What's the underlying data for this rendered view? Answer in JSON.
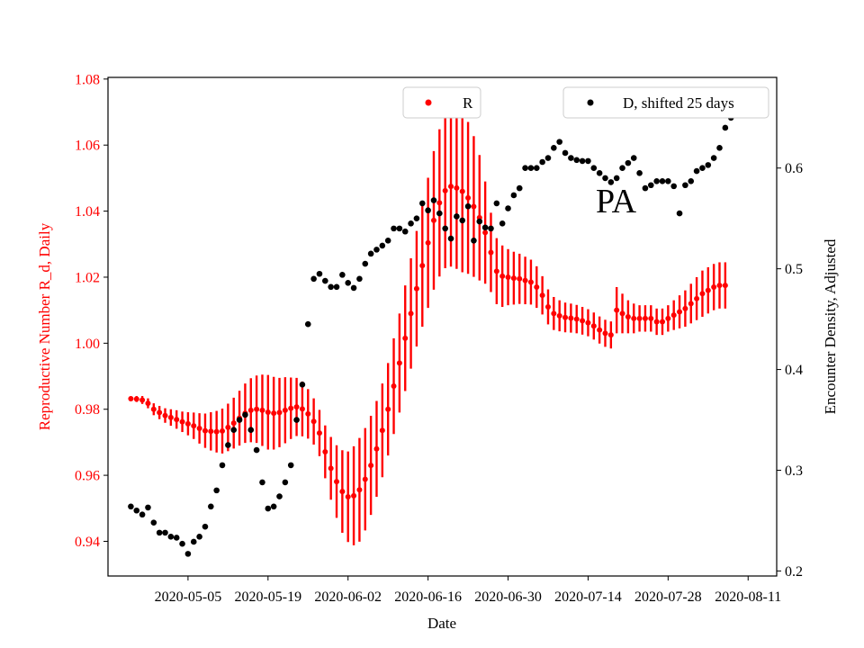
{
  "chart_data": {
    "type": "scatter",
    "xlabel": "Date",
    "ylabel_left": "Reproductive Number R_d, Daily",
    "ylabel_right": "Encounter Density, Adjusted",
    "annotation": "PA",
    "x_ticks": [
      "2020-05-05",
      "2020-05-19",
      "2020-06-02",
      "2020-06-16",
      "2020-06-30",
      "2020-07-14",
      "2020-07-28",
      "2020-08-11"
    ],
    "xlim": [
      "2020-04-21",
      "2020-08-16"
    ],
    "ylim_left": [
      0.9295,
      1.0805
    ],
    "yticks_left": [
      "0.94",
      "0.96",
      "0.98",
      "1.00",
      "1.02",
      "1.04",
      "1.06",
      "1.08"
    ],
    "ylim_right": [
      0.195,
      0.69
    ],
    "yticks_right": [
      "0.2",
      "0.3",
      "0.4",
      "0.5",
      "0.6"
    ],
    "grid": false,
    "colors": {
      "R": "#ff0000",
      "D": "#000000",
      "left_axis_text": "#ff0000",
      "right_axis_text": "#000000"
    },
    "legends": [
      {
        "label": "R",
        "color": "#ff0000",
        "placement": "upper-center"
      },
      {
        "label": "D, shifted 25 days",
        "color": "#000000",
        "placement": "upper-right"
      }
    ],
    "series": [
      {
        "name": "R",
        "axis": "left",
        "start_date": "2020-04-25",
        "values": [
          0.9832,
          0.9831,
          0.9828,
          0.9818,
          0.98,
          0.979,
          0.9781,
          0.9775,
          0.9769,
          0.9762,
          0.9756,
          0.975,
          0.9742,
          0.9735,
          0.9733,
          0.9732,
          0.9734,
          0.9745,
          0.9758,
          0.9773,
          0.9788,
          0.9797,
          0.98,
          0.9797,
          0.9791,
          0.9788,
          0.979,
          0.9797,
          0.9803,
          0.9807,
          0.9801,
          0.9786,
          0.9763,
          0.9728,
          0.9671,
          0.9621,
          0.9581,
          0.9551,
          0.9535,
          0.9538,
          0.9556,
          0.9588,
          0.963,
          0.968,
          0.9736,
          0.98,
          0.987,
          0.994,
          1.0015,
          1.009,
          1.0165,
          1.0235,
          1.0304,
          1.0372,
          1.0425,
          1.0462,
          1.0475,
          1.047,
          1.046,
          1.044,
          1.0414,
          1.038,
          1.0335,
          1.0275,
          1.0218,
          1.0203,
          1.02,
          1.0197,
          1.0195,
          1.019,
          1.0185,
          1.017,
          1.0145,
          1.011,
          1.009,
          1.0083,
          1.0078,
          1.0076,
          1.0073,
          1.0068,
          1.0062,
          1.0052,
          1.004,
          1.003,
          1.0025,
          1.01,
          1.009,
          1.008,
          1.0075,
          1.0075,
          1.0075,
          1.0075,
          1.0065,
          1.0065,
          1.0075,
          1.0085,
          1.0095,
          1.0105,
          1.012,
          1.0135,
          1.015,
          1.016,
          1.017,
          1.0175,
          1.0175
        ],
        "errors": [
          0.0007,
          0.0009,
          0.0012,
          0.0015,
          0.0018,
          0.002,
          0.0022,
          0.0025,
          0.0028,
          0.0031,
          0.0035,
          0.004,
          0.0046,
          0.0052,
          0.0058,
          0.0063,
          0.0068,
          0.0072,
          0.0077,
          0.0083,
          0.009,
          0.0097,
          0.0102,
          0.0108,
          0.0113,
          0.011,
          0.0105,
          0.01,
          0.0093,
          0.0088,
          0.0083,
          0.0075,
          0.007,
          0.007,
          0.008,
          0.0095,
          0.011,
          0.0125,
          0.0137,
          0.015,
          0.0157,
          0.0155,
          0.015,
          0.0145,
          0.0142,
          0.014,
          0.0145,
          0.015,
          0.016,
          0.0167,
          0.0175,
          0.0185,
          0.0197,
          0.021,
          0.0223,
          0.0235,
          0.0243,
          0.0245,
          0.0245,
          0.023,
          0.0213,
          0.019,
          0.0155,
          0.012,
          0.01,
          0.0093,
          0.0085,
          0.008,
          0.0076,
          0.0072,
          0.0068,
          0.0063,
          0.0058,
          0.0053,
          0.005,
          0.0047,
          0.0045,
          0.0044,
          0.0043,
          0.0042,
          0.0041,
          0.0041,
          0.0041,
          0.0041,
          0.0041,
          0.007,
          0.006,
          0.005,
          0.0045,
          0.004,
          0.004,
          0.004,
          0.004,
          0.004,
          0.004,
          0.0045,
          0.005,
          0.0055,
          0.006,
          0.0065,
          0.007,
          0.007,
          0.007,
          0.007,
          0.007
        ]
      },
      {
        "name": "D, shifted 25 days",
        "axis": "right",
        "start_date": "2020-04-25",
        "values": [
          0.264,
          0.26,
          0.256,
          0.263,
          0.248,
          0.238,
          0.238,
          0.234,
          0.233,
          0.227,
          0.217,
          0.229,
          0.234,
          0.244,
          0.264,
          0.28,
          0.305,
          0.325,
          0.34,
          0.35,
          0.355,
          0.34,
          0.32,
          0.288,
          0.262,
          0.264,
          0.274,
          0.288,
          0.305,
          0.35,
          0.385,
          0.445,
          0.49,
          0.495,
          0.488,
          0.482,
          0.482,
          0.494,
          0.486,
          0.481,
          0.49,
          0.505,
          0.515,
          0.519,
          0.523,
          0.528,
          0.54,
          0.54,
          0.537,
          0.545,
          0.55,
          0.565,
          0.558,
          0.568,
          0.555,
          0.54,
          0.53,
          0.552,
          0.548,
          0.562,
          0.528,
          0.547,
          0.541,
          0.54,
          0.565,
          0.545,
          0.56,
          0.573,
          0.58,
          0.6,
          0.6,
          0.6,
          0.606,
          0.61,
          0.62,
          0.626,
          0.615,
          0.61,
          0.608,
          0.607,
          0.607,
          0.6,
          0.595,
          0.59,
          0.586,
          0.59,
          0.6,
          0.605,
          0.61,
          0.595,
          0.58,
          0.583,
          0.587,
          0.587,
          0.587,
          0.582,
          0.555,
          0.583,
          0.587,
          0.597,
          0.6,
          0.603,
          0.61,
          0.62,
          0.64,
          0.65,
          0.655,
          0.66,
          0.665
        ]
      }
    ]
  }
}
